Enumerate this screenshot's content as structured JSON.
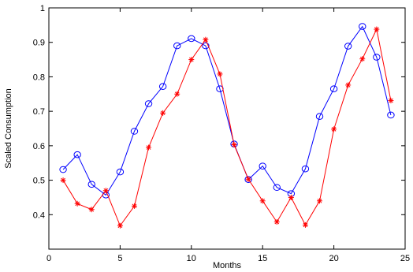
{
  "chart_data": {
    "type": "line",
    "title": "",
    "xlabel": "Months",
    "ylabel": "Scaled Consumption",
    "xlim": [
      0,
      25
    ],
    "ylim": [
      0.3,
      1.0
    ],
    "x_ticks": [
      0,
      5,
      10,
      15,
      20,
      25
    ],
    "y_ticks": [
      0.4,
      0.5,
      0.6,
      0.7,
      0.8,
      0.9,
      1.0
    ],
    "x_tick_labels": [
      "0",
      "5",
      "10",
      "15",
      "20",
      "25"
    ],
    "y_tick_labels": [
      "0.4",
      "0.5",
      "0.6",
      "0.7",
      "0.8",
      "0.9",
      "1"
    ],
    "grid": false,
    "x": [
      1,
      2,
      3,
      4,
      5,
      6,
      7,
      8,
      9,
      10,
      11,
      12,
      13,
      14,
      15,
      16,
      17,
      18,
      19,
      20,
      21,
      22,
      23,
      24
    ],
    "series": [
      {
        "color": "#0000ff",
        "marker": "circle",
        "values": [
          0.531,
          0.574,
          0.488,
          0.457,
          0.524,
          0.642,
          0.722,
          0.772,
          0.89,
          0.911,
          0.89,
          0.765,
          0.605,
          0.502,
          0.541,
          0.479,
          0.461,
          0.533,
          0.685,
          0.765,
          0.889,
          0.946,
          0.857,
          0.689
        ]
      },
      {
        "color": "#ff0000",
        "marker": "star",
        "values": [
          0.5,
          0.432,
          0.415,
          0.47,
          0.368,
          0.425,
          0.595,
          0.695,
          0.75,
          0.85,
          0.908,
          0.808,
          0.603,
          0.503,
          0.44,
          0.379,
          0.45,
          0.37,
          0.44,
          0.648,
          0.776,
          0.852,
          0.938,
          0.731
        ]
      }
    ]
  }
}
